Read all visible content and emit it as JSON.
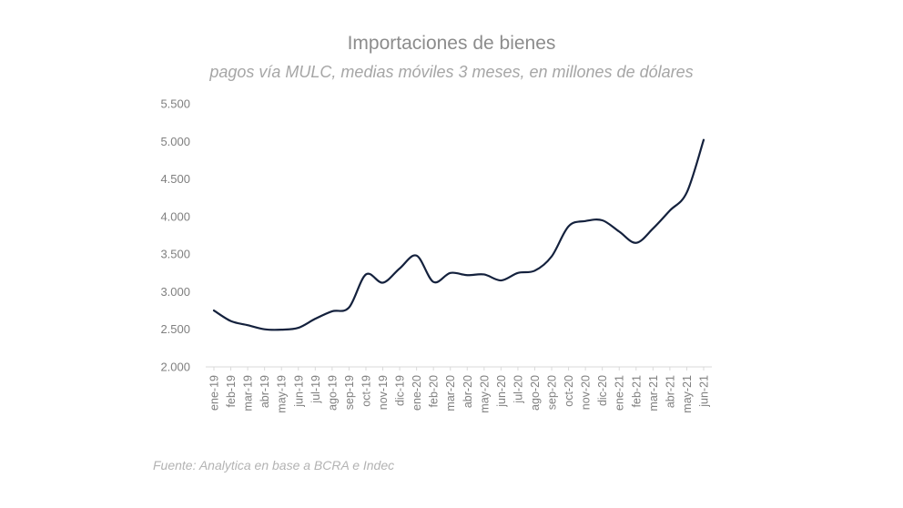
{
  "chart_data": {
    "type": "line",
    "title": "Importaciones de bienes",
    "subtitle": "pagos vía MULC, medias móviles 3 meses, en millones de dólares",
    "xlabel": "",
    "ylabel": "",
    "categories": [
      "ene-19",
      "feb-19",
      "mar-19",
      "abr-19",
      "may-19",
      "jun-19",
      "jul-19",
      "ago-19",
      "sep-19",
      "oct-19",
      "nov-19",
      "dic-19",
      "ene-20",
      "feb-20",
      "mar-20",
      "abr-20",
      "may-20",
      "jun-20",
      "jul-20",
      "ago-20",
      "sep-20",
      "oct-20",
      "nov-20",
      "dic-20",
      "ene-21",
      "feb-21",
      "mar-21",
      "abr-21",
      "may-21",
      "jun-21"
    ],
    "series": [
      {
        "values": [
          2750,
          2610,
          2555,
          2500,
          2495,
          2520,
          2640,
          2740,
          2790,
          3230,
          3120,
          3310,
          3480,
          3130,
          3250,
          3220,
          3230,
          3150,
          3250,
          3280,
          3470,
          3870,
          3940,
          3950,
          3800,
          3650,
          3840,
          4080,
          4320,
          5020
        ],
        "color": "#14213d"
      }
    ],
    "y_ticks": [
      "5.500",
      "5.000",
      "4.500",
      "4.000",
      "3.500",
      "3.000",
      "2.500",
      "2.000"
    ],
    "y_tick_values": [
      5500,
      5000,
      4500,
      4000,
      3500,
      3000,
      2500,
      2000
    ],
    "ylim": [
      2000,
      5500
    ],
    "grid": false,
    "legend": "none",
    "source": "Fuente: Analytica en base a BCRA e Indec"
  }
}
